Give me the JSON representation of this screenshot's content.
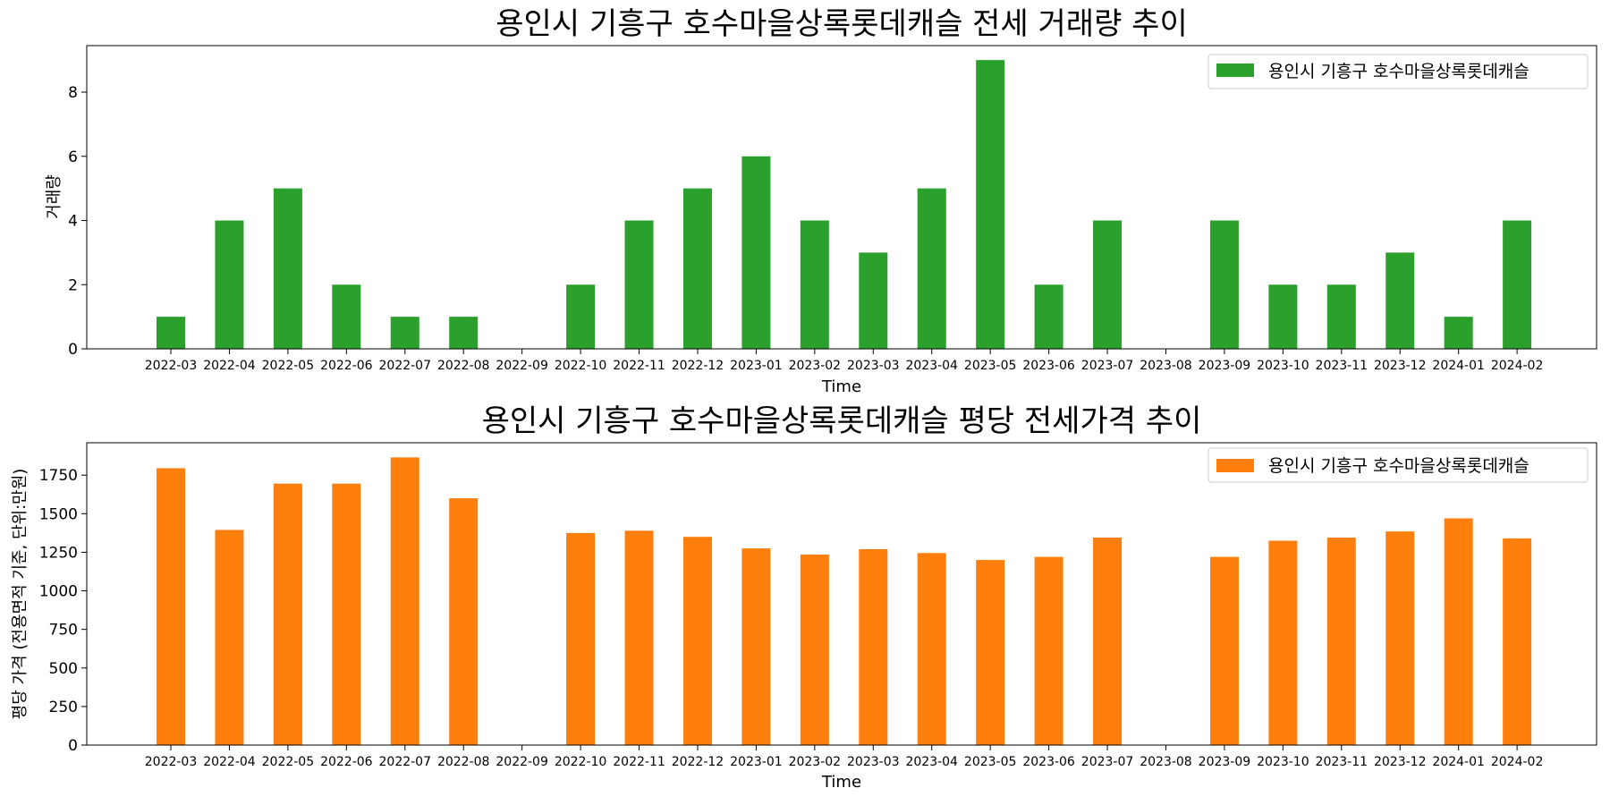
{
  "chart_data": [
    {
      "type": "bar",
      "title": "용인시 기흥구 호수마을상록롯데캐슬 전세 거래량 추이",
      "xlabel": "Time",
      "ylabel": "거래량",
      "ylim": [
        0,
        9.45
      ],
      "yticks": [
        0,
        2,
        4,
        6,
        8
      ],
      "legend_position": "top-right",
      "categories": [
        "2022-03",
        "2022-04",
        "2022-05",
        "2022-06",
        "2022-07",
        "2022-08",
        "2022-09",
        "2022-10",
        "2022-11",
        "2022-12",
        "2023-01",
        "2023-02",
        "2023-03",
        "2023-04",
        "2023-05",
        "2023-06",
        "2023-07",
        "2023-08",
        "2023-09",
        "2023-10",
        "2023-11",
        "2023-12",
        "2024-01",
        "2024-02"
      ],
      "series": [
        {
          "name": "용인시 기흥구 호수마을상록롯데캐슬",
          "color": "#2ca02c",
          "values": [
            1,
            4,
            5,
            2,
            1,
            1,
            0,
            2,
            4,
            5,
            6,
            4,
            3,
            5,
            9,
            2,
            4,
            0,
            4,
            2,
            2,
            3,
            1,
            4
          ]
        }
      ]
    },
    {
      "type": "bar",
      "title": "용인시 기흥구 호수마을상록롯데캐슬 평당 전세가격 추이",
      "xlabel": "Time",
      "ylabel": "평당 가격 (전용면적 기준, 단위:만원)",
      "ylim": [
        0,
        1960
      ],
      "yticks": [
        0,
        250,
        500,
        750,
        1000,
        1250,
        1500,
        1750
      ],
      "legend_position": "top-right",
      "categories": [
        "2022-03",
        "2022-04",
        "2022-05",
        "2022-06",
        "2022-07",
        "2022-08",
        "2022-09",
        "2022-10",
        "2022-11",
        "2022-12",
        "2023-01",
        "2023-02",
        "2023-03",
        "2023-04",
        "2023-05",
        "2023-06",
        "2023-07",
        "2023-08",
        "2023-09",
        "2023-10",
        "2023-11",
        "2023-12",
        "2024-01",
        "2024-02"
      ],
      "series": [
        {
          "name": "용인시 기흥구 호수마을상록롯데캐슬",
          "color": "#ff7f0e",
          "values": [
            1795,
            1395,
            1695,
            1695,
            1865,
            1600,
            null,
            1375,
            1390,
            1350,
            1275,
            1235,
            1270,
            1245,
            1200,
            1220,
            1345,
            null,
            1220,
            1325,
            1345,
            1385,
            1470,
            1340
          ]
        }
      ]
    }
  ]
}
